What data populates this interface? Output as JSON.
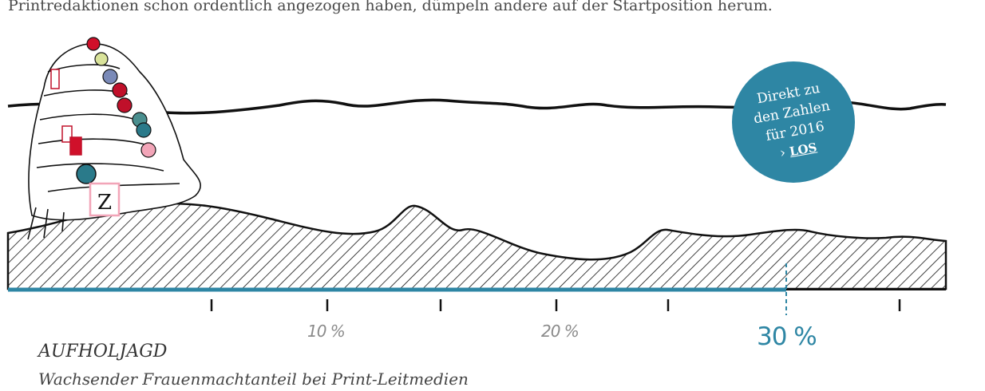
{
  "intro_text": "Printredaktionen schon ordentlich angezogen haben, dümpeln andere auf der Startposition herum.",
  "cta": {
    "line1": "Direkt zu",
    "line2": "den Zahlen",
    "line3": "für 2016",
    "link_arrow": "›",
    "link_label": "LOS"
  },
  "axis": {
    "ticks": [
      "10 %",
      "20 %",
      "30 %"
    ],
    "highlight_tick": "30 %"
  },
  "caption": {
    "title": "AUFHOLJAGD",
    "subtitle": "Wachsender Frauenmachtanteil bei Print-Leitmedien"
  },
  "colors": {
    "accent": "#2e86a4",
    "ink": "#111111",
    "jockey_caps": [
      "#d0102a",
      "#d9e39a",
      "#7a8ab8",
      "#c0102a",
      "#c0102a",
      "#4a8f8f",
      "#2a7a8a",
      "#f2a5b8"
    ]
  },
  "badge_icon": "newspaper-z-icon"
}
